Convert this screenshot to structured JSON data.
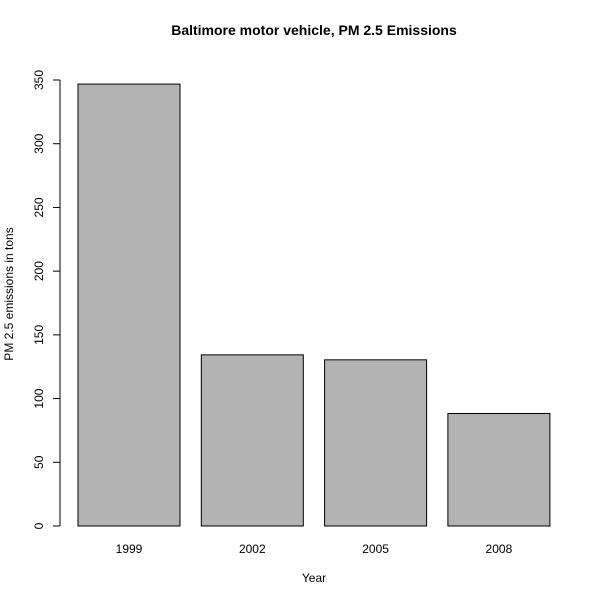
{
  "chart_data": {
    "type": "bar",
    "title": "Baltimore motor vehicle, PM 2.5 Emissions",
    "xlabel": "Year",
    "ylabel": "PM 2.5 emissions in tons",
    "categories": [
      "1999",
      "2002",
      "2005",
      "2008"
    ],
    "values": [
      346.8,
      134.3,
      130.4,
      88.3
    ],
    "ylim": [
      0,
      350
    ],
    "yticks": [
      0,
      50,
      100,
      150,
      200,
      250,
      300,
      350
    ],
    "grid": false,
    "legend": "none",
    "bar_fill": "#b3b3b3",
    "bar_stroke": "#000000"
  }
}
